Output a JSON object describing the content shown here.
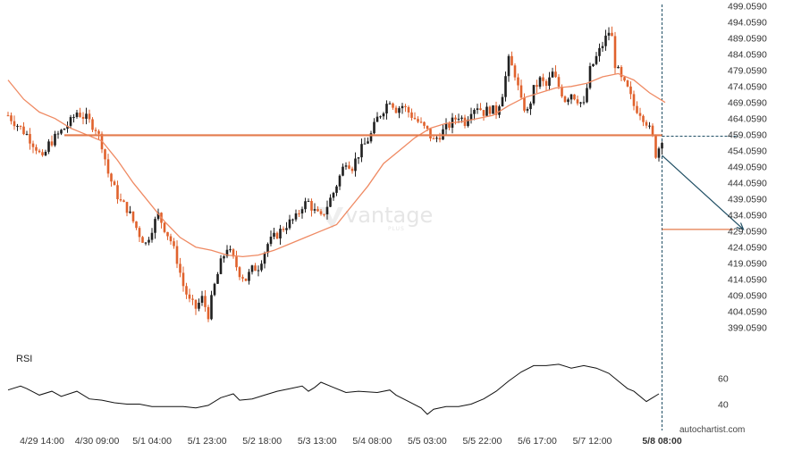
{
  "chart_data": [
    {
      "type": "candlestick",
      "colors": {
        "up": "#1f1f1f",
        "down": "#e0622d",
        "moving_average": "#ef8a63",
        "resistance_line": "#e47b4c",
        "forecast_arrow": "#1f4e64",
        "current_price_marker": "#1f4e64"
      },
      "x_ticks": [
        "4/29 14:00",
        "4/30 09:00",
        "5/1 04:00",
        "5/1 23:00",
        "5/2 18:00",
        "5/3 13:00",
        "5/4 08:00",
        "5/5 03:00",
        "5/5 22:00",
        "5/6 17:00",
        "5/7 12:00",
        "5/8 08:00"
      ],
      "y_ticks": [
        "499.0590",
        "494.0590",
        "489.0590",
        "484.0590",
        "479.0590",
        "474.0590",
        "469.0590",
        "464.0590",
        "459.0590",
        "454.0590",
        "449.0590",
        "444.0590",
        "439.0590",
        "434.0590",
        "429.0590",
        "424.0590",
        "419.0590",
        "414.0590",
        "409.0590",
        "404.0590",
        "399.0590"
      ],
      "ylim": [
        397.5,
        499.5
      ],
      "grid": false,
      "close_path": [
        [
          0,
          465
        ],
        [
          3,
          462
        ],
        [
          6,
          459
        ],
        [
          9,
          455
        ],
        [
          11,
          451
        ],
        [
          13,
          456
        ],
        [
          16,
          459
        ],
        [
          20,
          463
        ],
        [
          22,
          466
        ],
        [
          25,
          464
        ],
        [
          28,
          461
        ],
        [
          30,
          456
        ],
        [
          32,
          447
        ],
        [
          34,
          442
        ],
        [
          36,
          438
        ],
        [
          38,
          436
        ],
        [
          40,
          432
        ],
        [
          42,
          428
        ],
        [
          44,
          425
        ],
        [
          46,
          430
        ],
        [
          48,
          434
        ],
        [
          50,
          430
        ],
        [
          52,
          426
        ],
        [
          54,
          420
        ],
        [
          56,
          412
        ],
        [
          58,
          407
        ],
        [
          60,
          405
        ],
        [
          62,
          408
        ],
        [
          64,
          403
        ],
        [
          66,
          412
        ],
        [
          68,
          419
        ],
        [
          70,
          424
        ],
        [
          72,
          420
        ],
        [
          74,
          416
        ],
        [
          76,
          414
        ],
        [
          78,
          417
        ],
        [
          80,
          418
        ],
        [
          83,
          425
        ],
        [
          86,
          428
        ],
        [
          89,
          431
        ],
        [
          92,
          433
        ],
        [
          94,
          437
        ],
        [
          96,
          438
        ],
        [
          98,
          435
        ],
        [
          100,
          433
        ],
        [
          102,
          437
        ],
        [
          104,
          441
        ],
        [
          106,
          446
        ],
        [
          108,
          451
        ],
        [
          110,
          449
        ],
        [
          112,
          453
        ],
        [
          114,
          456
        ],
        [
          116,
          459
        ],
        [
          118,
          464
        ],
        [
          120,
          467
        ],
        [
          122,
          470
        ],
        [
          124,
          467
        ],
        [
          126,
          468
        ],
        [
          128,
          466
        ],
        [
          130,
          464
        ],
        [
          132,
          462
        ],
        [
          134,
          460
        ],
        [
          136,
          457
        ],
        [
          138,
          459
        ],
        [
          140,
          461
        ],
        [
          142,
          463
        ],
        [
          144,
          465
        ],
        [
          146,
          463
        ],
        [
          148,
          467
        ],
        [
          150,
          468
        ],
        [
          152,
          466
        ],
        [
          154,
          467
        ],
        [
          156,
          466
        ],
        [
          158,
          472
        ],
        [
          160,
          482
        ],
        [
          162,
          478
        ],
        [
          164,
          469
        ],
        [
          166,
          466
        ],
        [
          168,
          473
        ],
        [
          170,
          476
        ],
        [
          172,
          474
        ],
        [
          174,
          478
        ],
        [
          176,
          474
        ],
        [
          178,
          470
        ],
        [
          180,
          472
        ],
        [
          182,
          470
        ],
        [
          184,
          468
        ],
        [
          186,
          479
        ],
        [
          188,
          483
        ],
        [
          190,
          487
        ],
        [
          192,
          491
        ],
        [
          193,
          489
        ],
        [
          194,
          481
        ],
        [
          196,
          476
        ],
        [
          198,
          473
        ],
        [
          200,
          468
        ],
        [
          202,
          466
        ],
        [
          204,
          463
        ],
        [
          206,
          458
        ],
        [
          207,
          453
        ],
        [
          208,
          455
        ],
        [
          209,
          458
        ]
      ],
      "moving_average": [
        [
          0,
          476
        ],
        [
          5,
          470
        ],
        [
          10,
          466
        ],
        [
          15,
          464
        ],
        [
          20,
          461
        ],
        [
          25,
          459
        ],
        [
          30,
          457
        ],
        [
          35,
          451
        ],
        [
          40,
          444
        ],
        [
          45,
          438
        ],
        [
          50,
          432
        ],
        [
          55,
          427
        ],
        [
          60,
          424
        ],
        [
          65,
          423
        ],
        [
          70,
          421.5
        ],
        [
          75,
          421
        ],
        [
          80,
          421.5
        ],
        [
          85,
          423
        ],
        [
          90,
          425
        ],
        [
          95,
          427
        ],
        [
          100,
          429
        ],
        [
          105,
          431
        ],
        [
          110,
          437
        ],
        [
          115,
          443
        ],
        [
          120,
          450
        ],
        [
          125,
          454
        ],
        [
          130,
          458
        ],
        [
          135,
          461
        ],
        [
          140,
          462.5
        ],
        [
          145,
          463
        ],
        [
          150,
          464
        ],
        [
          155,
          465
        ],
        [
          160,
          468
        ],
        [
          165,
          470.5
        ],
        [
          170,
          472
        ],
        [
          175,
          473.5
        ],
        [
          180,
          474
        ],
        [
          185,
          475
        ],
        [
          190,
          477
        ],
        [
          195,
          478
        ],
        [
          200,
          476
        ],
        [
          205,
          472
        ],
        [
          210,
          469
        ]
      ],
      "resistance_level": 458.8,
      "resistance_range": [
        18,
        209
      ],
      "forecast": {
        "from": [
          209,
          452.5
        ],
        "to": [
          235,
          429.5
        ]
      },
      "target_level": 429.5,
      "target_range": [
        209,
        235
      ],
      "current_price": 458.5
    },
    {
      "type": "line",
      "title": "RSI",
      "y_ticks": [
        "60",
        "40"
      ],
      "ylim": [
        25,
        80
      ],
      "values": [
        [
          0,
          51
        ],
        [
          4,
          54
        ],
        [
          6,
          52
        ],
        [
          10,
          47
        ],
        [
          14,
          50
        ],
        [
          17,
          46
        ],
        [
          22,
          50
        ],
        [
          26,
          44
        ],
        [
          30,
          43
        ],
        [
          34,
          41
        ],
        [
          38,
          40
        ],
        [
          42,
          40
        ],
        [
          46,
          38
        ],
        [
          50,
          38
        ],
        [
          56,
          38
        ],
        [
          60,
          37
        ],
        [
          64,
          39
        ],
        [
          68,
          45
        ],
        [
          72,
          48
        ],
        [
          74,
          43
        ],
        [
          78,
          44
        ],
        [
          82,
          47
        ],
        [
          86,
          50
        ],
        [
          90,
          52
        ],
        [
          94,
          54
        ],
        [
          96,
          50
        ],
        [
          98,
          53
        ],
        [
          100,
          57
        ],
        [
          104,
          53
        ],
        [
          108,
          49
        ],
        [
          112,
          50
        ],
        [
          118,
          49
        ],
        [
          122,
          51
        ],
        [
          124,
          47
        ],
        [
          128,
          42
        ],
        [
          132,
          37
        ],
        [
          134,
          32
        ],
        [
          136,
          36
        ],
        [
          140,
          38
        ],
        [
          144,
          38
        ],
        [
          148,
          40
        ],
        [
          152,
          44
        ],
        [
          156,
          50
        ],
        [
          160,
          58
        ],
        [
          164,
          65
        ],
        [
          168,
          70
        ],
        [
          172,
          70
        ],
        [
          176,
          71
        ],
        [
          180,
          68
        ],
        [
          184,
          70
        ],
        [
          188,
          68
        ],
        [
          192,
          64
        ],
        [
          196,
          56
        ],
        [
          198,
          52
        ],
        [
          200,
          50
        ],
        [
          204,
          42
        ],
        [
          206,
          45
        ],
        [
          208,
          48
        ]
      ]
    }
  ],
  "rsi_label": "RSI",
  "brand": "autochartist.com",
  "watermark": {
    "text": "vantage",
    "sub": "PLUS"
  }
}
